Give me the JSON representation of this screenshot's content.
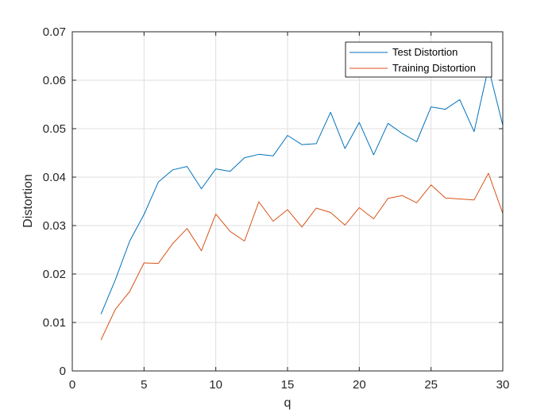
{
  "chart_data": {
    "type": "line",
    "title": "",
    "xlabel": "q",
    "ylabel": "Distortion",
    "xlim": [
      0,
      30
    ],
    "ylim": [
      0,
      0.07
    ],
    "xticks": [
      "0",
      "5",
      "10",
      "15",
      "20",
      "25",
      "30"
    ],
    "yticks": [
      "0",
      "0.01",
      "0.02",
      "0.03",
      "0.04",
      "0.05",
      "0.06",
      "0.07"
    ],
    "grid": true,
    "legend_position": "top-right",
    "x": [
      2,
      3,
      4,
      5,
      6,
      7,
      8,
      9,
      10,
      11,
      12,
      13,
      14,
      15,
      16,
      17,
      18,
      19,
      20,
      21,
      22,
      23,
      24,
      25,
      26,
      27,
      28,
      29,
      30
    ],
    "series": [
      {
        "name": "Test Distortion",
        "color": "#0072BD",
        "values": [
          0.0117,
          0.0188,
          0.0268,
          0.0323,
          0.039,
          0.0415,
          0.0422,
          0.0376,
          0.0417,
          0.0412,
          0.044,
          0.0447,
          0.0444,
          0.0486,
          0.0467,
          0.0469,
          0.0534,
          0.0459,
          0.0513,
          0.0446,
          0.0511,
          0.049,
          0.0473,
          0.0545,
          0.054,
          0.056,
          0.0494,
          0.0626,
          0.0507
        ]
      },
      {
        "name": "Training Distortion",
        "color": "#D95319",
        "values": [
          0.0064,
          0.0127,
          0.0164,
          0.0223,
          0.0222,
          0.0263,
          0.0294,
          0.0248,
          0.0324,
          0.0288,
          0.0268,
          0.0349,
          0.0309,
          0.0333,
          0.0297,
          0.0336,
          0.0327,
          0.0301,
          0.0337,
          0.0314,
          0.0356,
          0.0362,
          0.0347,
          0.0384,
          0.0357,
          0.0355,
          0.0353,
          0.0408,
          0.0325
        ]
      }
    ]
  }
}
